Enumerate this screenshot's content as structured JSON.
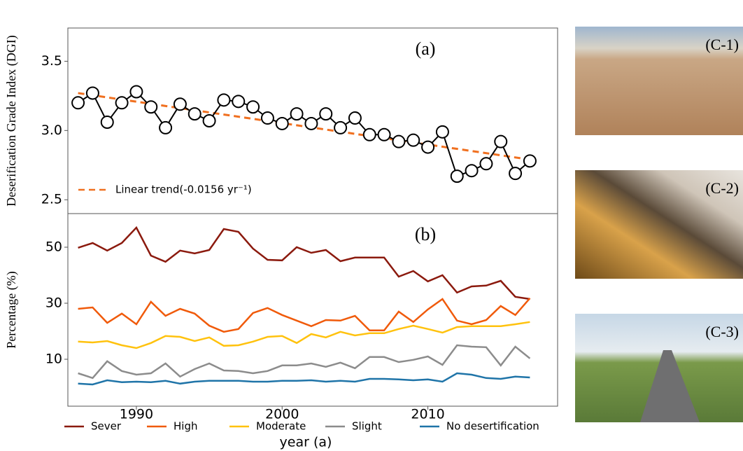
{
  "chart_data": [
    {
      "type": "line",
      "annotation": "(a)",
      "ylabel": "Deserification Grade Index (DGI)",
      "x": [
        1986,
        1987,
        1988,
        1989,
        1990,
        1991,
        1992,
        1993,
        1994,
        1995,
        1996,
        1997,
        1998,
        1999,
        2000,
        2001,
        2002,
        2003,
        2004,
        2005,
        2006,
        2007,
        2008,
        2009,
        2010,
        2011,
        2012,
        2013,
        2014,
        2015,
        2016,
        2017
      ],
      "series": [
        {
          "color": "#000000",
          "marker": "circle",
          "values": [
            3.2,
            3.27,
            3.06,
            3.2,
            3.28,
            3.17,
            3.02,
            3.19,
            3.12,
            3.07,
            3.22,
            3.21,
            3.17,
            3.09,
            3.05,
            3.12,
            3.05,
            3.12,
            3.02,
            3.09,
            2.97,
            2.97,
            2.92,
            2.93,
            2.88,
            2.99,
            2.67,
            2.71,
            2.76,
            2.92,
            2.69,
            2.78
          ]
        }
      ],
      "trend": {
        "name": "Linear trend(-0.0156 yr⁻¹)",
        "color": "#f07020",
        "x": [
          1986,
          2017
        ],
        "values": [
          3.27,
          2.79
        ]
      },
      "legend": "lower left",
      "xlim": [
        1985.3,
        2018.9
      ],
      "ylim": [
        2.4,
        3.74
      ],
      "yticks": [
        2.5,
        {
          "value": 3,
          "label": "3.0"
        },
        3.5
      ]
    },
    {
      "type": "line",
      "annotation": "(b)",
      "ylabel": "Percentage (%)",
      "xlabel": "year (a)",
      "x": [
        1986,
        1987,
        1988,
        1989,
        1990,
        1991,
        1992,
        1993,
        1994,
        1995,
        1996,
        1997,
        1998,
        1999,
        2000,
        2001,
        2002,
        2003,
        2004,
        2005,
        2006,
        2007,
        2008,
        2009,
        2010,
        2011,
        2012,
        2013,
        2014,
        2015,
        2016,
        2017
      ],
      "series": [
        {
          "name": "Sever",
          "color": "#8b1a0e",
          "values": [
            49.8,
            51.5,
            48.8,
            51.5,
            57,
            47,
            44.8,
            48.8,
            47.8,
            49,
            56.5,
            55.5,
            49.5,
            45.5,
            45.3,
            50,
            48,
            49,
            45,
            46.3,
            46.3,
            46.3,
            39.5,
            41.5,
            37.8,
            40,
            33.8,
            36,
            36.3,
            38,
            32.3,
            31.5
          ]
        },
        {
          "name": "High",
          "color": "#f05a0a",
          "values": [
            28,
            28.5,
            23,
            26.3,
            22.5,
            30.5,
            25.5,
            28,
            26.3,
            22,
            19.8,
            20.8,
            26.5,
            28.3,
            25.8,
            23.8,
            21.8,
            24,
            23.8,
            25.5,
            20.3,
            20.3,
            27,
            23.3,
            27.8,
            31.5,
            23.8,
            22.5,
            24,
            29,
            25.8,
            31.8
          ]
        },
        {
          "name": "Moderate",
          "color": "#ffc20e",
          "values": [
            16.3,
            16,
            16.5,
            15,
            14,
            15.8,
            18.3,
            18,
            16.5,
            17.8,
            14.8,
            15,
            16.3,
            18,
            18.3,
            15.8,
            19,
            17.8,
            19.8,
            18.5,
            19.3,
            19.3,
            20.8,
            22,
            20.8,
            19.5,
            21.5,
            21.8,
            21.8,
            21.8,
            22.5,
            23.3
          ]
        },
        {
          "name": "Slight",
          "color": "#8c8c8c",
          "values": [
            5,
            3.3,
            9.3,
            5.8,
            4.5,
            5,
            8.5,
            3.8,
            6.5,
            8.5,
            6,
            5.8,
            5,
            5.8,
            7.8,
            7.8,
            8.5,
            7.3,
            8.8,
            6.8,
            10.8,
            10.8,
            9,
            9.8,
            11,
            8,
            15,
            14.5,
            14.3,
            7.8,
            14.5,
            10.3
          ]
        },
        {
          "name": "No desertification",
          "color": "#1f74a8",
          "values": [
            1.3,
            1,
            2.5,
            1.8,
            2,
            1.8,
            2.3,
            1.3,
            2,
            2.3,
            2.3,
            2.3,
            2,
            2,
            2.3,
            2.3,
            2.5,
            2,
            2.3,
            2,
            3,
            3,
            2.8,
            2.5,
            2.8,
            2,
            5,
            4.5,
            3.3,
            3,
            3.8,
            3.5
          ]
        }
      ],
      "legend": "below",
      "xlim": [
        1985.3,
        2018.9
      ],
      "ylim": [
        -6.75,
        62
      ],
      "xticks": [
        1990,
        2000,
        2010
      ],
      "yticks": [
        10,
        30,
        50
      ]
    }
  ],
  "photos": [
    "(C-1)",
    "(C-2)",
    "(C-3)"
  ]
}
